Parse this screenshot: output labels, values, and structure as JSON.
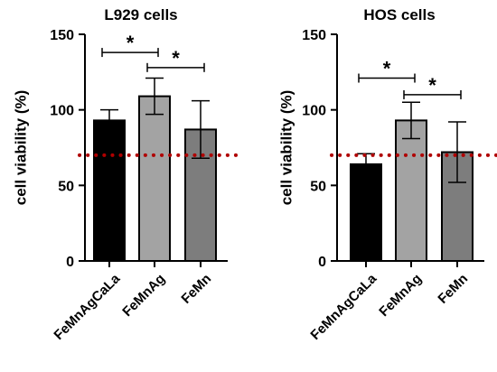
{
  "chart_data": [
    {
      "type": "bar",
      "title": "L929 cells",
      "ylabel": "cell viability (%)",
      "xlabel": "",
      "categories": [
        "FeMnAgCaLa",
        "FeMnAg",
        "FeMn"
      ],
      "values": [
        93,
        109,
        87
      ],
      "errors": [
        7,
        12,
        19
      ],
      "bar_colors": [
        "#000000",
        "#a3a3a3",
        "#7d7d7d"
      ],
      "ylim": [
        0,
        150
      ],
      "yticks": [
        "0",
        "50",
        "100",
        "150"
      ],
      "reference_line": {
        "value": 70,
        "color": "#b00000",
        "style": "dotted"
      },
      "significance": [
        {
          "from": 0,
          "to": 1,
          "label": "*",
          "y": 138
        },
        {
          "from": 1,
          "to": 2,
          "label": "*",
          "y": 128
        }
      ],
      "grid": false,
      "legend": "none"
    },
    {
      "type": "bar",
      "title": "HOS cells",
      "ylabel": "cell viability (%)",
      "xlabel": "",
      "categories": [
        "FeMnAgCaLa",
        "FeMnAg",
        "FeMn"
      ],
      "values": [
        64,
        93,
        72
      ],
      "errors": [
        7,
        12,
        20
      ],
      "bar_colors": [
        "#000000",
        "#a3a3a3",
        "#7d7d7d"
      ],
      "ylim": [
        0,
        150
      ],
      "yticks": [
        "0",
        "50",
        "100",
        "150"
      ],
      "reference_line": {
        "value": 70,
        "color": "#b00000",
        "style": "dotted"
      },
      "significance": [
        {
          "from": 0,
          "to": 1,
          "label": "*",
          "y": 121
        },
        {
          "from": 1,
          "to": 2,
          "label": "*",
          "y": 110
        }
      ],
      "grid": false,
      "legend": "none"
    }
  ]
}
